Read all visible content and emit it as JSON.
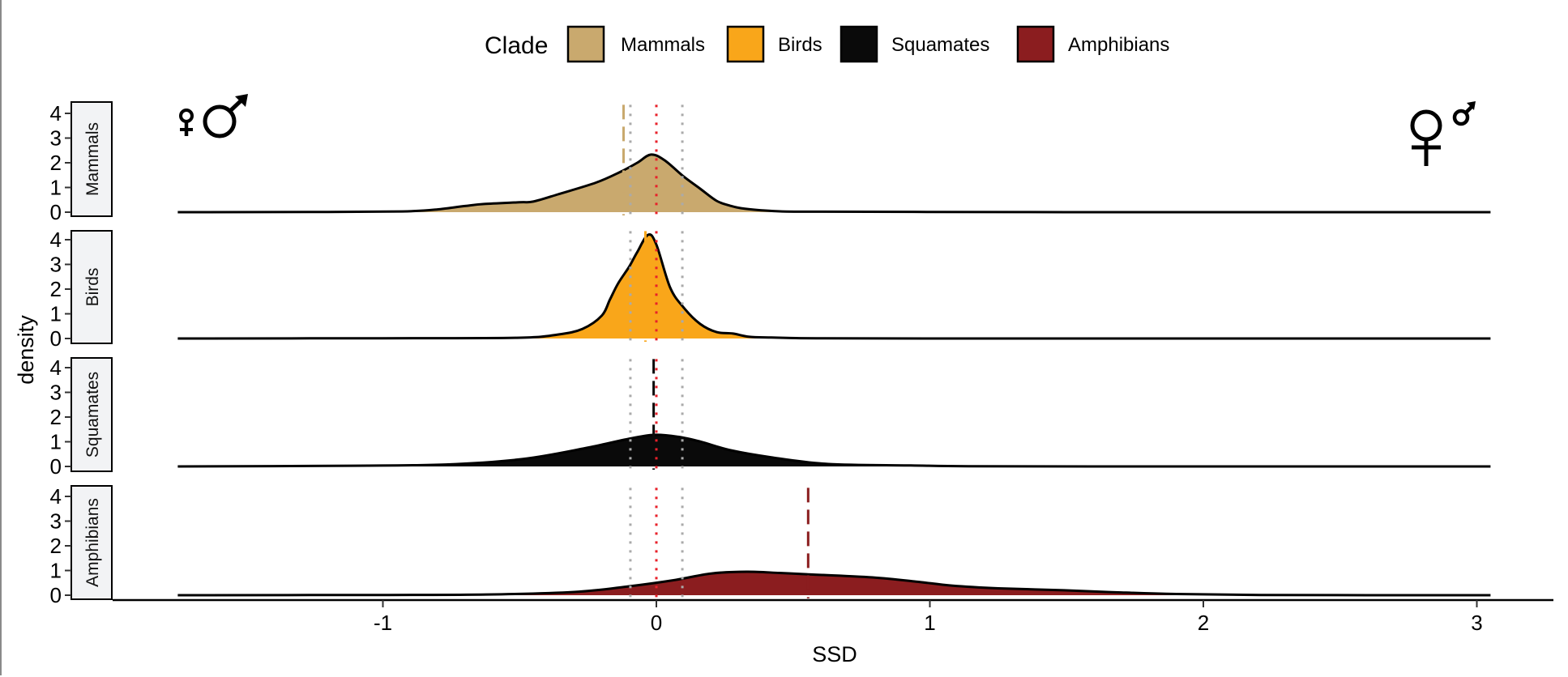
{
  "chart_data": {
    "type": "area",
    "subtype": "faceted density (ridgeline) plot",
    "xlabel": "SSD",
    "ylabel": "density",
    "xlim": [
      -2.0,
      3.3
    ],
    "ylim": [
      0,
      4.4
    ],
    "x_ticks": [
      -1,
      0,
      1,
      2,
      3
    ],
    "x_tick_labels": [
      "-1",
      "0",
      "1",
      "2",
      "3"
    ],
    "y_ticks": [
      0,
      1,
      2,
      3,
      4
    ],
    "y_tick_labels": [
      "0",
      "1",
      "2",
      "3",
      "4"
    ],
    "grid": false,
    "legend": {
      "title": "Clade",
      "placement": "top",
      "entries": [
        {
          "name": "Mammals",
          "color": "#C9A96E"
        },
        {
          "name": "Birds",
          "color": "#F9A61A"
        },
        {
          "name": "Squamates",
          "color": "#0A0A0A"
        },
        {
          "name": "Amphibians",
          "color": "#8B1D1F"
        }
      ]
    },
    "reference_lines": [
      {
        "x": 0,
        "style": "dotted",
        "color": "#E8202A",
        "label": "zero"
      },
      {
        "x": -0.095,
        "style": "dotted",
        "color": "#AAAAAA"
      },
      {
        "x": 0.095,
        "style": "dotted",
        "color": "#AAAAAA"
      }
    ],
    "annotations": [
      {
        "text": "♀♂",
        "position": "top-left",
        "meaning": "male-biased (small female, large male)"
      },
      {
        "text": "♀♂",
        "position": "top-right",
        "meaning": "female-biased (large female, small male)"
      }
    ],
    "series": [
      {
        "name": "Mammals",
        "color": "#C9A96E",
        "mean": -0.12,
        "x": [
          -1.75,
          -1.2,
          -0.93,
          -0.81,
          -0.7,
          -0.63,
          -0.5,
          -0.45,
          -0.36,
          -0.22,
          -0.13,
          -0.07,
          -0.02,
          0.03,
          0.1,
          0.16,
          0.22,
          0.27,
          0.31,
          0.38,
          0.46,
          0.6,
          1.0,
          1.5,
          2.0,
          2.5,
          3.05
        ],
        "values": [
          0.0,
          0.01,
          0.03,
          0.1,
          0.25,
          0.33,
          0.4,
          0.43,
          0.72,
          1.2,
          1.64,
          2.0,
          2.33,
          2.1,
          1.44,
          0.95,
          0.46,
          0.26,
          0.16,
          0.08,
          0.03,
          0.02,
          0.01,
          0.0,
          0.0,
          0.0,
          0.0
        ]
      },
      {
        "name": "Birds",
        "color": "#F9A61A",
        "mean": -0.04,
        "x": [
          -1.75,
          -1.0,
          -0.51,
          -0.36,
          -0.27,
          -0.2,
          -0.17,
          -0.14,
          -0.1,
          -0.07,
          -0.03,
          0.0,
          0.05,
          0.1,
          0.16,
          0.22,
          0.28,
          0.34,
          0.42,
          0.49,
          0.6,
          1.0,
          2.0,
          3.05
        ],
        "values": [
          0.0,
          0.01,
          0.03,
          0.16,
          0.39,
          0.92,
          1.57,
          2.23,
          2.9,
          3.5,
          4.2,
          3.8,
          2.07,
          1.25,
          0.59,
          0.26,
          0.2,
          0.07,
          0.04,
          0.02,
          0.01,
          0.0,
          0.0,
          0.0
        ]
      },
      {
        "name": "Squamates",
        "color": "#0A0A0A",
        "mean": -0.01,
        "x": [
          -1.75,
          -1.11,
          -0.77,
          -0.49,
          -0.26,
          -0.11,
          -0.01,
          0.08,
          0.16,
          0.27,
          0.42,
          0.63,
          0.93,
          1.14,
          1.6,
          2.2,
          3.05
        ],
        "values": [
          0.0,
          0.03,
          0.08,
          0.3,
          0.74,
          1.1,
          1.28,
          1.2,
          1.01,
          0.66,
          0.37,
          0.1,
          0.04,
          0.01,
          0.0,
          0.0,
          0.0
        ]
      },
      {
        "name": "Amphibians",
        "color": "#8B1D1F",
        "mean": 0.555,
        "x": [
          -1.75,
          -1.0,
          -0.62,
          -0.3,
          -0.1,
          0.07,
          0.2,
          0.33,
          0.45,
          0.55,
          0.79,
          0.95,
          1.08,
          1.25,
          1.49,
          1.7,
          1.9,
          2.21,
          2.6,
          3.05
        ],
        "values": [
          0.0,
          0.01,
          0.03,
          0.13,
          0.36,
          0.62,
          0.88,
          0.95,
          0.9,
          0.85,
          0.72,
          0.55,
          0.39,
          0.28,
          0.2,
          0.11,
          0.05,
          0.01,
          0.0,
          0.0
        ]
      }
    ]
  }
}
